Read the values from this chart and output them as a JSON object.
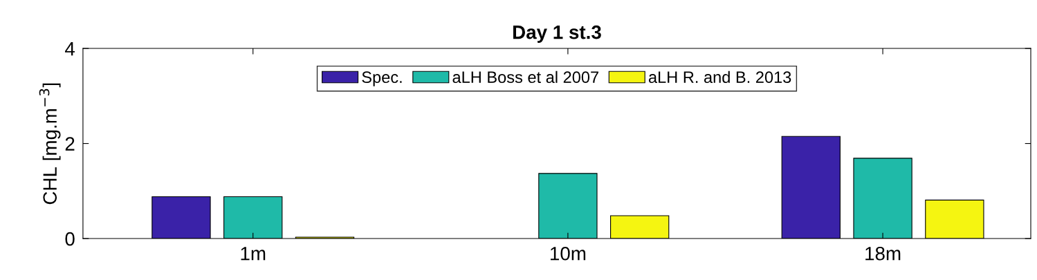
{
  "chart_data": {
    "type": "bar",
    "title": "Day 1 st.3",
    "ylabel": "CHL [mg.m$^{−3}$]",
    "categories": [
      "1m",
      "10m",
      "18m"
    ],
    "series": [
      {
        "name": "Spec.",
        "color": "#3a22a8",
        "values": [
          0.88,
          null,
          2.15
        ]
      },
      {
        "name": "aLH Boss et al 2007",
        "color": "#1fbaa8",
        "values": [
          0.88,
          1.37,
          1.69
        ]
      },
      {
        "name": "aLH R. and B. 2013",
        "color": "#f5f511",
        "values": [
          0.03,
          0.48,
          0.81
        ]
      }
    ],
    "ylim": [
      0,
      4
    ],
    "yticks": [
      0,
      2,
      4
    ],
    "legend": "top",
    "grid": false
  }
}
